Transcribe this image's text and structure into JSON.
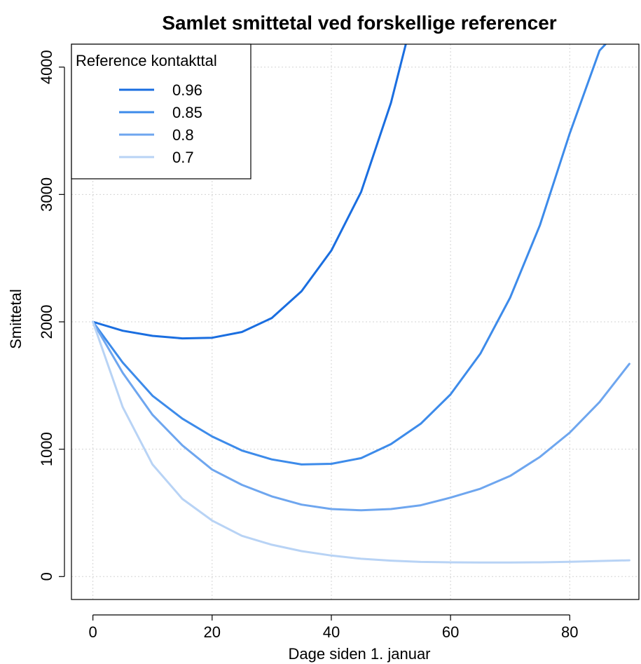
{
  "chart_data": {
    "type": "line",
    "title": "Samlet smittetal ved forskellige referencer",
    "xlabel": "Dage siden 1. januar",
    "ylabel": "Smittetal",
    "xlim": [
      -3.6,
      91.6
    ],
    "ylim": [
      -180,
      4180
    ],
    "xticks": [
      0,
      20,
      40,
      60,
      80
    ],
    "yticks": [
      0,
      1000,
      2000,
      3000,
      4000
    ],
    "grid": true,
    "legend": {
      "title": "Reference kontakttal",
      "position": "top-left"
    },
    "series": [
      {
        "name": "0.96",
        "color": "#1a6ee0",
        "x": [
          0,
          5,
          10,
          15,
          20,
          25,
          30,
          35,
          40,
          45,
          50,
          52.5
        ],
        "y": [
          2000,
          1930,
          1890,
          1870,
          1875,
          1920,
          2030,
          2240,
          2560,
          3020,
          3720,
          4180
        ]
      },
      {
        "name": "0.85",
        "color": "#3d8bea",
        "x": [
          0,
          5,
          10,
          15,
          20,
          25,
          30,
          35,
          40,
          45,
          50,
          55,
          60,
          65,
          70,
          75,
          80,
          85,
          86
        ],
        "y": [
          2000,
          1680,
          1420,
          1240,
          1100,
          990,
          920,
          880,
          885,
          930,
          1040,
          1200,
          1430,
          1750,
          2190,
          2760,
          3480,
          4130,
          4180
        ]
      },
      {
        "name": "0.8",
        "color": "#6ea6ef",
        "x": [
          0,
          5,
          10,
          15,
          20,
          25,
          30,
          35,
          40,
          45,
          50,
          55,
          60,
          65,
          70,
          75,
          80,
          85,
          90
        ],
        "y": [
          2000,
          1600,
          1270,
          1030,
          840,
          720,
          630,
          565,
          530,
          520,
          530,
          560,
          620,
          690,
          790,
          940,
          1130,
          1370,
          1670
        ]
      },
      {
        "name": "0.7",
        "color": "#b8d3f5",
        "x": [
          0,
          5,
          10,
          15,
          20,
          25,
          30,
          35,
          40,
          45,
          50,
          55,
          60,
          65,
          70,
          75,
          80,
          85,
          90
        ],
        "y": [
          2000,
          1330,
          880,
          610,
          440,
          320,
          250,
          200,
          165,
          140,
          125,
          115,
          112,
          110,
          110,
          112,
          116,
          122,
          128
        ]
      }
    ]
  }
}
